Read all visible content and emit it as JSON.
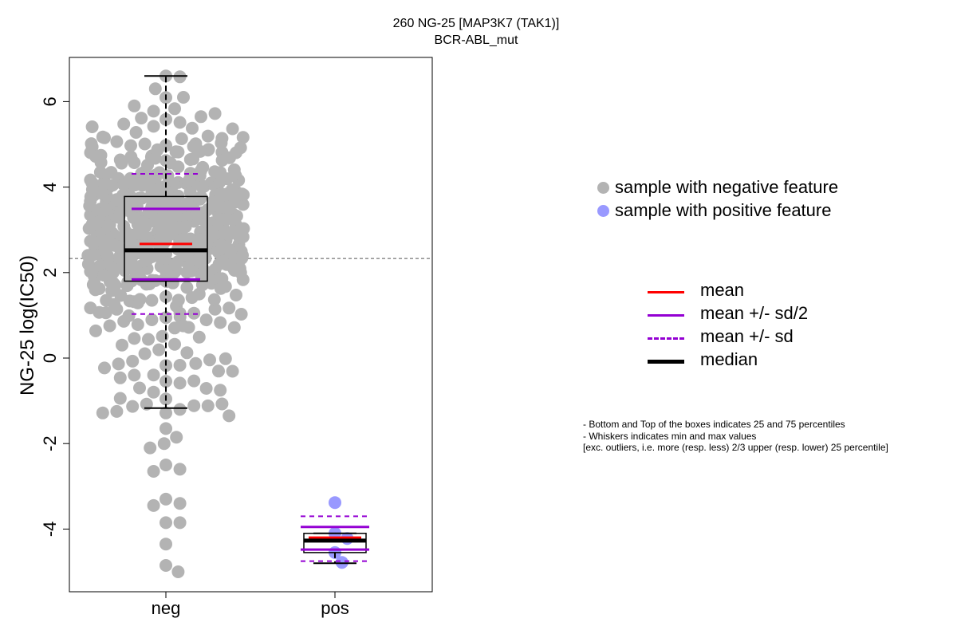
{
  "chart_data": {
    "type": "beeswarm-boxplot",
    "title": "260 NG-25 [MAP3K7 (TAK1)]",
    "subtitle": "BCR-ABL_mut",
    "ylabel": "NG-25 log(IC50)",
    "xlabel": "",
    "ylim": [
      -5.4,
      7.1
    ],
    "yticks": [
      -4,
      -2,
      0,
      2,
      4,
      6
    ],
    "categories": [
      "neg",
      "pos"
    ],
    "reference_line": 2.33,
    "groups": [
      {
        "name": "neg",
        "color": "#b3b3b3",
        "box": {
          "q1": 1.8,
          "median": 2.52,
          "q3": 3.78,
          "whisker_low": -1.17,
          "whisker_high": 6.6
        },
        "mean": 2.67,
        "sd_half_low": 1.84,
        "sd_half_high": 3.49,
        "sd_low": 1.03,
        "sd_high": 4.31,
        "outliers": [
          -1.35,
          -1.65,
          -1.85,
          -2.0,
          -2.1,
          -2.5,
          -2.6,
          -2.65,
          -3.3,
          -3.4,
          -3.45,
          -3.85,
          -3.85,
          -4.35,
          -4.85,
          -5.0
        ]
      },
      {
        "name": "pos",
        "color": "#9999ff",
        "box": {
          "q1": -4.55,
          "median": -4.27,
          "q3": -4.1,
          "whisker_low": -4.8,
          "whisker_high": -4.1
        },
        "mean": -4.2,
        "sd_half_low": -4.48,
        "sd_half_high": -3.95,
        "sd_low": -4.75,
        "sd_high": -3.7,
        "points": [
          -3.38,
          -4.1,
          -4.22,
          -4.55,
          -4.78
        ]
      }
    ]
  },
  "legend": {
    "points": [
      {
        "label": "sample with negative feature",
        "color": "#b3b3b3"
      },
      {
        "label": "sample with positive feature",
        "color": "#9999ff"
      }
    ],
    "lines": [
      {
        "label": "mean",
        "color": "#ff0000",
        "style": "solid"
      },
      {
        "label": "mean +/- sd/2",
        "color": "#9400d3",
        "style": "solid"
      },
      {
        "label": "mean +/- sd",
        "color": "#9400d3",
        "style": "dashed"
      },
      {
        "label": "median",
        "color": "#000000",
        "style": "thick"
      }
    ]
  },
  "notes": [
    "- Bottom and Top of the boxes indicates 25 and 75 percentiles",
    "- Whiskers indicates min and max values",
    "[exc. outliers, i.e. more (resp. less) 2/3 upper (resp. lower) 25 percentile]"
  ]
}
